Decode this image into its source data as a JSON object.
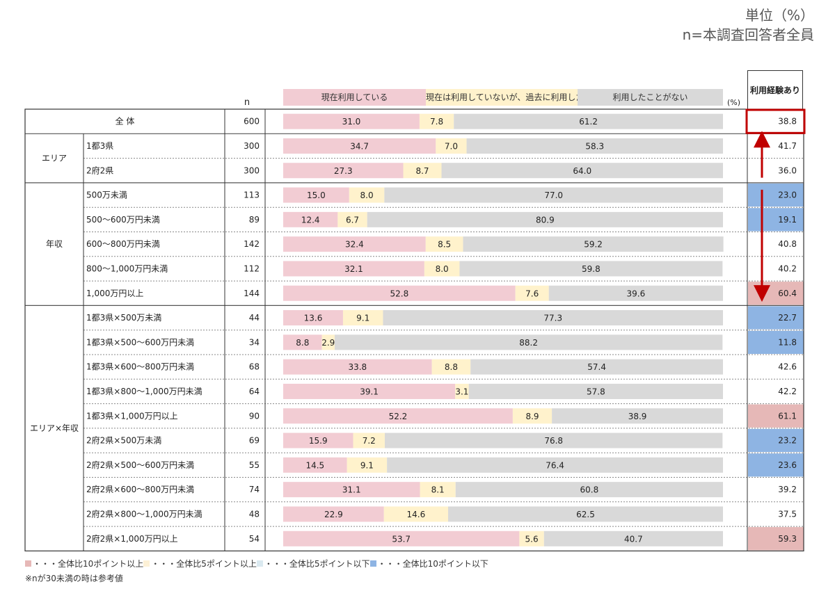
{
  "header": {
    "unit_label": "単位（%）",
    "base_label": "n=本調査回答者全員"
  },
  "table_head": {
    "n_label": "n",
    "pct_label": "(%)",
    "experience_label": "利用経験あり"
  },
  "footer": {
    "legend": [
      {
        "label": "・・・全体比10ポイント以上",
        "color": "#e6b8b7"
      },
      {
        "label": "・・・全体比5ポイント以上",
        "color": "#fdf1d6"
      },
      {
        "label": "・・・全体比5ポイント以下",
        "color": "#dae9f0"
      },
      {
        "label": "・・・全体比10ポイント以下",
        "color": "#8eb4e3"
      }
    ],
    "note": "※nが30未満の時は参考値"
  },
  "colors": {
    "current": "#f2ccd3",
    "past": "#fff2cc",
    "never": "#d9d9d9",
    "highlight_high": "#e6b8b7",
    "highlight_low": "#8eb4e3",
    "arrow": "#c00000"
  },
  "chart_data": {
    "type": "bar",
    "stacked": true,
    "orientation": "horizontal",
    "xlim": [
      0,
      100
    ],
    "series": [
      {
        "name": "現在利用している",
        "color": "#f2ccd3"
      },
      {
        "name": "現在は利用していないが、過去に利用した",
        "color": "#fff2cc"
      },
      {
        "name": "利用したことがない",
        "color": "#d9d9d9"
      }
    ],
    "groups": [
      {
        "label": "",
        "rows": [
          0
        ]
      },
      {
        "label": "エリア",
        "rows": [
          1,
          2
        ]
      },
      {
        "label": "年収",
        "rows": [
          3,
          4,
          5,
          6,
          7
        ]
      },
      {
        "label": "エリア×年収",
        "rows": [
          8,
          9,
          10,
          11,
          12,
          13,
          14,
          15,
          16,
          17
        ]
      }
    ],
    "rows": [
      {
        "label": "全 体",
        "n": "600",
        "values": [
          31.0,
          7.8,
          61.2
        ],
        "experience": "38.8",
        "highlight": "total"
      },
      {
        "label": "1都3県",
        "n": "300",
        "values": [
          34.7,
          7.0,
          58.3
        ],
        "experience": "41.7",
        "highlight": "none"
      },
      {
        "label": "2府2県",
        "n": "300",
        "values": [
          27.3,
          8.7,
          64.0
        ],
        "experience": "36.0",
        "highlight": "none"
      },
      {
        "label": "500万未満",
        "n": "113",
        "values": [
          15.0,
          8.0,
          77.0
        ],
        "experience": "23.0",
        "highlight": "low"
      },
      {
        "label": "500～600万円未満",
        "n": "89",
        "values": [
          12.4,
          6.7,
          80.9
        ],
        "experience": "19.1",
        "highlight": "low"
      },
      {
        "label": "600～800万円未満",
        "n": "142",
        "values": [
          32.4,
          8.5,
          59.2
        ],
        "experience": "40.8",
        "highlight": "none"
      },
      {
        "label": "800～1,000万円未満",
        "n": "112",
        "values": [
          32.1,
          8.0,
          59.8
        ],
        "experience": "40.2",
        "highlight": "none"
      },
      {
        "label": "1,000万円以上",
        "n": "144",
        "values": [
          52.8,
          7.6,
          39.6
        ],
        "experience": "60.4",
        "highlight": "high"
      },
      {
        "label": "1都3県×500万未満",
        "n": "44",
        "values": [
          13.6,
          9.1,
          77.3
        ],
        "experience": "22.7",
        "highlight": "low"
      },
      {
        "label": "1都3県×500～600万円未満",
        "n": "34",
        "values": [
          8.8,
          2.9,
          88.2
        ],
        "experience": "11.8",
        "highlight": "low"
      },
      {
        "label": "1都3県×600～800万円未満",
        "n": "68",
        "values": [
          33.8,
          8.8,
          57.4
        ],
        "experience": "42.6",
        "highlight": "none"
      },
      {
        "label": "1都3県×800～1,000万円未満",
        "n": "64",
        "values": [
          39.1,
          3.1,
          57.8
        ],
        "experience": "42.2",
        "highlight": "none"
      },
      {
        "label": "1都3県×1,000万円以上",
        "n": "90",
        "values": [
          52.2,
          8.9,
          38.9
        ],
        "experience": "61.1",
        "highlight": "high"
      },
      {
        "label": "2府2県×500万未満",
        "n": "69",
        "values": [
          15.9,
          7.2,
          76.8
        ],
        "experience": "23.2",
        "highlight": "low"
      },
      {
        "label": "2府2県×500～600万円未満",
        "n": "55",
        "values": [
          14.5,
          9.1,
          76.4
        ],
        "experience": "23.6",
        "highlight": "low"
      },
      {
        "label": "2府2県×600～800万円未満",
        "n": "74",
        "values": [
          31.1,
          8.1,
          60.8
        ],
        "experience": "39.2",
        "highlight": "none"
      },
      {
        "label": "2府2県×800～1,000万円未満",
        "n": "48",
        "values": [
          22.9,
          14.6,
          62.5
        ],
        "experience": "37.5",
        "highlight": "none"
      },
      {
        "label": "2府2県×1,000万円以上",
        "n": "54",
        "values": [
          53.7,
          5.6,
          40.7
        ],
        "experience": "59.3",
        "highlight": "high"
      }
    ]
  }
}
